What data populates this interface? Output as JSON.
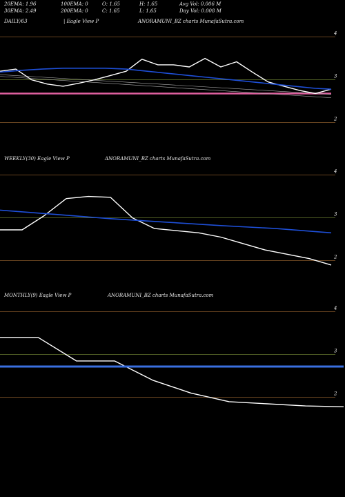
{
  "header": {
    "row1": [
      "20EMA: 1.96",
      "100EMA: 0",
      "O: 1.65",
      "H: 1.65",
      "Avg Vol: 0.006  M"
    ],
    "row2": [
      "30EMA: 2.49",
      "200EMA: 0",
      "C: 1.65",
      "L: 1.65",
      "Day Vol: 0.008  M"
    ]
  },
  "colors": {
    "background": "#000000",
    "price": "#ffffff",
    "ema": "#1e4fd8",
    "ema_thick": "#3a6fe0",
    "grid_line": "#8a5a2a",
    "grid_line_green": "#5a6a2a",
    "daily_level": "#e060a0",
    "trend": "#b0b0b0"
  },
  "chart_data": [
    {
      "type": "line",
      "label": "DAILY/63",
      "left_text": "| Eagle   View  P",
      "center_text": "ANORAMUNI_BZ charts MunafaSutra.com",
      "ylim": [
        1.35,
        4.25
      ],
      "tick_labels": [
        "4",
        "3",
        "2"
      ],
      "tick_values": [
        4,
        3,
        2
      ],
      "grid_values": [
        4,
        3,
        2
      ],
      "highlight_level": 2.68,
      "series": [
        {
          "role": "price",
          "x": [
            0,
            3,
            6,
            9,
            12,
            15,
            18,
            21,
            24,
            27,
            30,
            33,
            36,
            39,
            42,
            45,
            48,
            51,
            54,
            57,
            60,
            63
          ],
          "values": [
            3.2,
            3.25,
            3.0,
            2.9,
            2.85,
            2.92,
            3.0,
            3.1,
            3.2,
            3.48,
            3.35,
            3.35,
            3.3,
            3.5,
            3.3,
            3.42,
            3.18,
            2.95,
            2.85,
            2.75,
            2.68,
            2.78
          ]
        },
        {
          "role": "ema",
          "x": [
            0,
            4,
            8,
            12,
            16,
            20,
            24,
            28,
            32,
            36,
            40,
            44,
            48,
            52,
            56,
            60,
            63
          ],
          "values": [
            3.18,
            3.22,
            3.25,
            3.27,
            3.27,
            3.27,
            3.25,
            3.2,
            3.15,
            3.1,
            3.05,
            3.0,
            2.95,
            2.9,
            2.85,
            2.8,
            2.78
          ]
        }
      ]
    },
    {
      "type": "line",
      "label": "WEEKLY(30) Eagle   View  P",
      "center_text": "ANORAMUNI_BZ charts MunafaSutra.com",
      "ylim": [
        1.35,
        4.25
      ],
      "tick_labels": [
        "4",
        "3",
        "2"
      ],
      "tick_values": [
        4,
        3,
        2
      ],
      "grid_values": [
        4,
        3,
        2
      ],
      "series": [
        {
          "role": "price",
          "x": [
            0,
            2,
            4,
            6,
            8,
            10,
            12,
            14,
            16,
            18,
            20,
            22,
            24,
            26,
            28,
            30
          ],
          "values": [
            2.72,
            2.72,
            3.05,
            3.45,
            3.5,
            3.48,
            3.0,
            2.75,
            2.7,
            2.65,
            2.55,
            2.4,
            2.25,
            2.15,
            2.05,
            1.9
          ]
        },
        {
          "role": "ema",
          "x": [
            0,
            5,
            10,
            15,
            20,
            25,
            30
          ],
          "values": [
            3.18,
            3.08,
            2.98,
            2.9,
            2.82,
            2.75,
            2.65
          ]
        }
      ]
    },
    {
      "type": "line",
      "label": "MONTHLY(9) Eagle   View  P",
      "center_text": "ANORAMUNI_BZ charts MunafaSutra.com",
      "ylim": [
        1.35,
        4.25
      ],
      "tick_labels": [
        "4",
        "3",
        "2"
      ],
      "tick_values": [
        4,
        3,
        2
      ],
      "grid_values": [
        4,
        3,
        2
      ],
      "series": [
        {
          "role": "price",
          "x": [
            0,
            1,
            2,
            3,
            4,
            5,
            6,
            7,
            8,
            9
          ],
          "values": [
            3.4,
            3.4,
            2.85,
            2.85,
            2.4,
            2.1,
            1.9,
            1.85,
            1.8,
            1.78
          ]
        },
        {
          "role": "ema",
          "x": [
            0,
            9
          ],
          "values": [
            2.72,
            2.72
          ]
        }
      ]
    }
  ]
}
